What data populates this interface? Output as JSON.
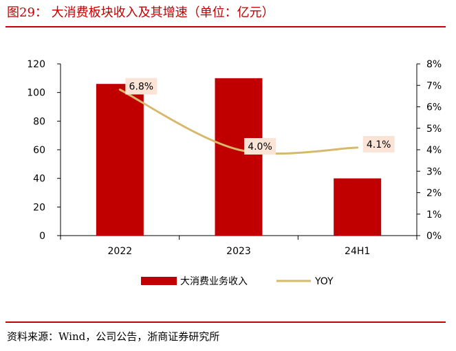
{
  "title": "图29：  大消费板块收入及其增速（单位：亿元）",
  "source": "资料来源：Wind，公司公告，浙商证券研究所",
  "chart_data": {
    "type": "bar",
    "categories": [
      "2022",
      "2023",
      "24H1"
    ],
    "series": [
      {
        "name": "大消费业务收入",
        "type": "bar",
        "axis": "left",
        "values": [
          106,
          110,
          40
        ]
      },
      {
        "name": "YOY",
        "type": "line",
        "axis": "right",
        "values": [
          6.8,
          4.0,
          4.1
        ],
        "data_labels": [
          "6.8%",
          "4.0%",
          "4.1%"
        ]
      }
    ],
    "ylim_left": [
      0,
      120
    ],
    "yticks_left": [
      "0",
      "20",
      "40",
      "60",
      "80",
      "100",
      "120"
    ],
    "ylim_right": [
      0,
      8
    ],
    "yticks_right": [
      "0%",
      "1%",
      "2%",
      "3%",
      "4%",
      "5%",
      "6%",
      "7%",
      "8%"
    ],
    "grid": false,
    "legend_position": "bottom",
    "colors": {
      "bar": "#c00000",
      "line": "#d6b96b",
      "label_bg": "#fbe3d6"
    }
  }
}
